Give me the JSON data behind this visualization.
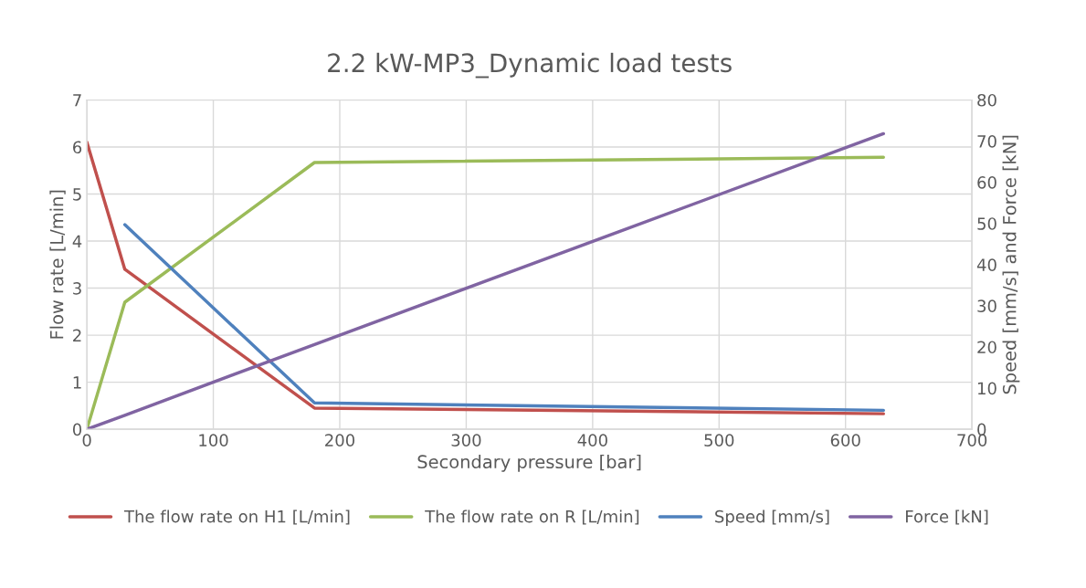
{
  "chart_data": {
    "type": "line",
    "title": "2.2 kW-MP3_Dynamic load tests",
    "xlabel": "Secondary pressure [bar]",
    "ylabel": "Flow rate [L/min]",
    "y2label": "Speed [mm/s] and Force [kN]",
    "series": [
      {
        "name": "The flow rate on H1 [L/min]",
        "color": "#c0504d",
        "x": [
          0,
          30,
          180,
          630
        ],
        "values": [
          6.1,
          3.4,
          0.45,
          0.33
        ]
      },
      {
        "name": "The flow rate on R [L/min]",
        "color": "#9bbb59",
        "x": [
          0,
          30,
          180,
          630
        ],
        "values": [
          0,
          2.7,
          5.67,
          5.78
        ]
      },
      {
        "name": "Speed [mm/s]",
        "color": "#4f81bd",
        "axis": "y2",
        "x": [
          30,
          180,
          630
        ],
        "values": [
          49.7,
          6.4,
          4.6
        ]
      },
      {
        "name": "Force [kN]",
        "color": "#8064a2",
        "axis": "y2",
        "x": [
          0,
          30,
          180,
          630
        ],
        "values": [
          0,
          3.4,
          20.6,
          71.8
        ]
      }
    ],
    "xlim": [
      0,
      700
    ],
    "xticks": [
      0,
      100,
      200,
      300,
      400,
      500,
      600,
      700
    ],
    "ylim": [
      0,
      7
    ],
    "yticks": [
      0,
      1,
      2,
      3,
      4,
      5,
      6,
      7
    ],
    "y2lim": [
      0,
      80
    ],
    "y2ticks": [
      0,
      10,
      20,
      30,
      40,
      50,
      60,
      70,
      80
    ],
    "grid": true,
    "legend": "bottom",
    "marker": "none",
    "line_style": "solid"
  }
}
